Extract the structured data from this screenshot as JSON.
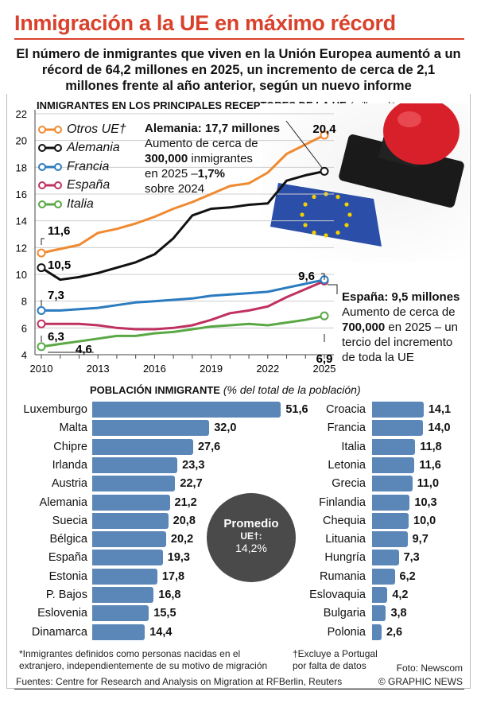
{
  "header": {
    "title": "Inmigración a la UE en máximo récord",
    "subtitle": "El número de inmigrantes que viven en la Unión Europea aumentó a un récord de 64,2 millones en 2025, un incremento de cerca de 2,1 millones frente al año anterior, según un nuevo informe"
  },
  "colors": {
    "title": "#d9412b",
    "otros": "#f08a30",
    "alemania": "#111111",
    "francia": "#2a7bbf",
    "espana": "#c0315f",
    "italia": "#5aa845",
    "bars": "#5b86b8",
    "circle": "#4a4a4a"
  },
  "chart_data": [
    {
      "type": "line",
      "title": "Inmigrantes en los Principales Receptores de la UE",
      "unit": "(millones)*",
      "x": [
        2010,
        2011,
        2012,
        2013,
        2014,
        2015,
        2016,
        2017,
        2018,
        2019,
        2020,
        2021,
        2022,
        2023,
        2024,
        2025
      ],
      "xticks": [
        "2010",
        "2013",
        "2016",
        "2019",
        "2022",
        "2025"
      ],
      "ylim": [
        4,
        22
      ],
      "yticks": [
        "4",
        "6",
        "8",
        "10",
        "12",
        "14",
        "16",
        "18",
        "20",
        "22"
      ],
      "grid": true,
      "legend_position": "top-left",
      "series": [
        {
          "name": "Otros UE†",
          "key": "otros",
          "values": [
            11.6,
            11.9,
            12.2,
            13.1,
            13.4,
            13.8,
            14.3,
            14.9,
            15.4,
            16.0,
            16.6,
            16.8,
            17.6,
            19.0,
            19.7,
            20.4
          ]
        },
        {
          "name": "Alemania",
          "key": "alemania",
          "values": [
            10.5,
            9.6,
            9.8,
            10.1,
            10.5,
            10.9,
            11.5,
            12.7,
            14.4,
            14.9,
            15.0,
            15.2,
            15.3,
            17.0,
            17.4,
            17.7
          ]
        },
        {
          "name": "Francia",
          "key": "francia",
          "values": [
            7.3,
            7.3,
            7.4,
            7.5,
            7.7,
            7.9,
            8.0,
            8.1,
            8.2,
            8.4,
            8.5,
            8.6,
            8.7,
            9.0,
            9.3,
            9.6
          ]
        },
        {
          "name": "España",
          "key": "espana",
          "values": [
            6.3,
            6.3,
            6.3,
            6.2,
            6.0,
            5.9,
            5.9,
            6.0,
            6.2,
            6.6,
            7.1,
            7.3,
            7.6,
            8.3,
            8.9,
            9.5
          ]
        },
        {
          "name": "Italia",
          "key": "italia",
          "values": [
            4.6,
            4.8,
            5.0,
            5.2,
            5.4,
            5.4,
            5.6,
            5.7,
            5.9,
            6.1,
            6.2,
            6.3,
            6.2,
            6.4,
            6.6,
            6.9
          ]
        }
      ],
      "data_labels": {
        "otros_2010": "11,6",
        "alemania_2010": "10,5",
        "francia_2010": "7,3",
        "espana_2010": "6,3",
        "italia_2010": "4,6",
        "otros_2025": "20,4",
        "francia_2025": "9,6",
        "italia_2025": "6,9"
      },
      "annotations": {
        "alemania": {
          "head": "Alemania: 17,7 millones",
          "l1": "Aumento de cerca de",
          "l2b": "300,000",
          "l2": " inmigrantes",
          "l3": "en 2025 –",
          "l3b": "1,7%",
          "l4": "sobre 2024"
        },
        "espana": {
          "head": "España: 9,5 millones",
          "l1": "Aumento de cerca de",
          "l2b": "700,000",
          "l2": " en 2025 – un",
          "l3": "tercio del incremento",
          "l4": "de toda la UE"
        }
      }
    },
    {
      "type": "bar",
      "title": "Población Inmigrante",
      "unit": "(% del total de la población)",
      "left": {
        "categories": [
          "Luxemburgo",
          "Malta",
          "Chipre",
          "Irlanda",
          "Austria",
          "Alemania",
          "Suecia",
          "Bélgica",
          "España",
          "Estonia",
          "P. Bajos",
          "Eslovenia",
          "Dinamarca"
        ],
        "values": [
          51.6,
          32.0,
          27.6,
          23.3,
          22.7,
          21.2,
          20.8,
          20.2,
          19.3,
          17.8,
          16.8,
          15.5,
          14.4
        ],
        "labels": [
          "51,6",
          "32,0",
          "27,6",
          "23,3",
          "22,7",
          "21,2",
          "20,8",
          "20,2",
          "19,3",
          "17,8",
          "16,8",
          "15,5",
          "14,4"
        ]
      },
      "right": {
        "categories": [
          "Croacia",
          "Francia",
          "Italia",
          "Letonia",
          "Grecia",
          "Finlandia",
          "Chequia",
          "Lituania",
          "Hungría",
          "Rumania",
          "Eslovaquia",
          "Bulgaria",
          "Polonia"
        ],
        "values": [
          14.1,
          14.0,
          11.8,
          11.6,
          11.0,
          10.3,
          10.0,
          9.7,
          7.3,
          6.2,
          4.2,
          3.8,
          2.6
        ],
        "labels": [
          "14,1",
          "14,0",
          "11,8",
          "11,6",
          "11,0",
          "10,3",
          "10,0",
          "9,7",
          "7,3",
          "6,2",
          "4,2",
          "3,8",
          "2,6"
        ]
      },
      "average": {
        "label": "Promedio",
        "sub": "UE†:",
        "value": "14,2%"
      }
    }
  ],
  "footer": {
    "note1a": "*Inmigrantes definidos como personas nacidas en el",
    "note1b": "extranjero, independientemente de su motivo de migración",
    "note2a": "†Excluye a Portugal",
    "note2b": "por falta de datos",
    "photo": "Foto: Newscom",
    "sources": "Fuentes: Centre for Research and Analysis on Migration at RFBerlin, Reuters",
    "credit": "© GRAPHIC NEWS"
  }
}
